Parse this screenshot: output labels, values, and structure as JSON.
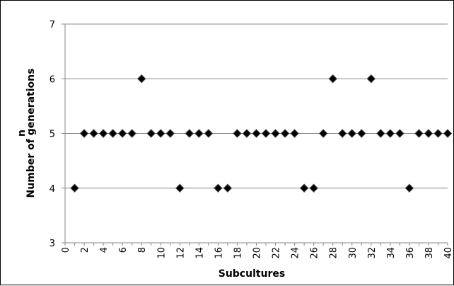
{
  "chart_data": {
    "type": "scatter",
    "title": "",
    "xlabel": "Subcultures",
    "ylabel": "Number of generations",
    "ylabel_symbol": "n",
    "xlim": [
      0,
      40
    ],
    "ylim": [
      3,
      7
    ],
    "x_ticks": [
      "0",
      "2",
      "4",
      "6",
      "8",
      "10",
      "12",
      "14",
      "16",
      "18",
      "20",
      "22",
      "24",
      "26",
      "28",
      "30",
      "32",
      "34",
      "36",
      "38",
      "40"
    ],
    "y_ticks": [
      "3",
      "4",
      "5",
      "6",
      "7"
    ],
    "grid": "horizontal",
    "marker": "diamond",
    "marker_color": "#000000",
    "series": [
      {
        "x": [
          1,
          2,
          3,
          4,
          5,
          6,
          7,
          8,
          9,
          10,
          11,
          12,
          13,
          14,
          15,
          16,
          17,
          18,
          19,
          20,
          21,
          22,
          23,
          24,
          25,
          26,
          27,
          28,
          29,
          30,
          31,
          32,
          33,
          34,
          35,
          36,
          37,
          38,
          39,
          40
        ],
        "y": [
          4,
          5,
          5,
          5,
          5,
          5,
          5,
          6,
          5,
          5,
          5,
          4,
          5,
          5,
          5,
          4,
          4,
          5,
          5,
          5,
          5,
          5,
          5,
          5,
          4,
          4,
          5,
          6,
          5,
          5,
          5,
          6,
          5,
          5,
          5,
          4,
          5,
          5,
          5,
          5
        ]
      }
    ]
  }
}
